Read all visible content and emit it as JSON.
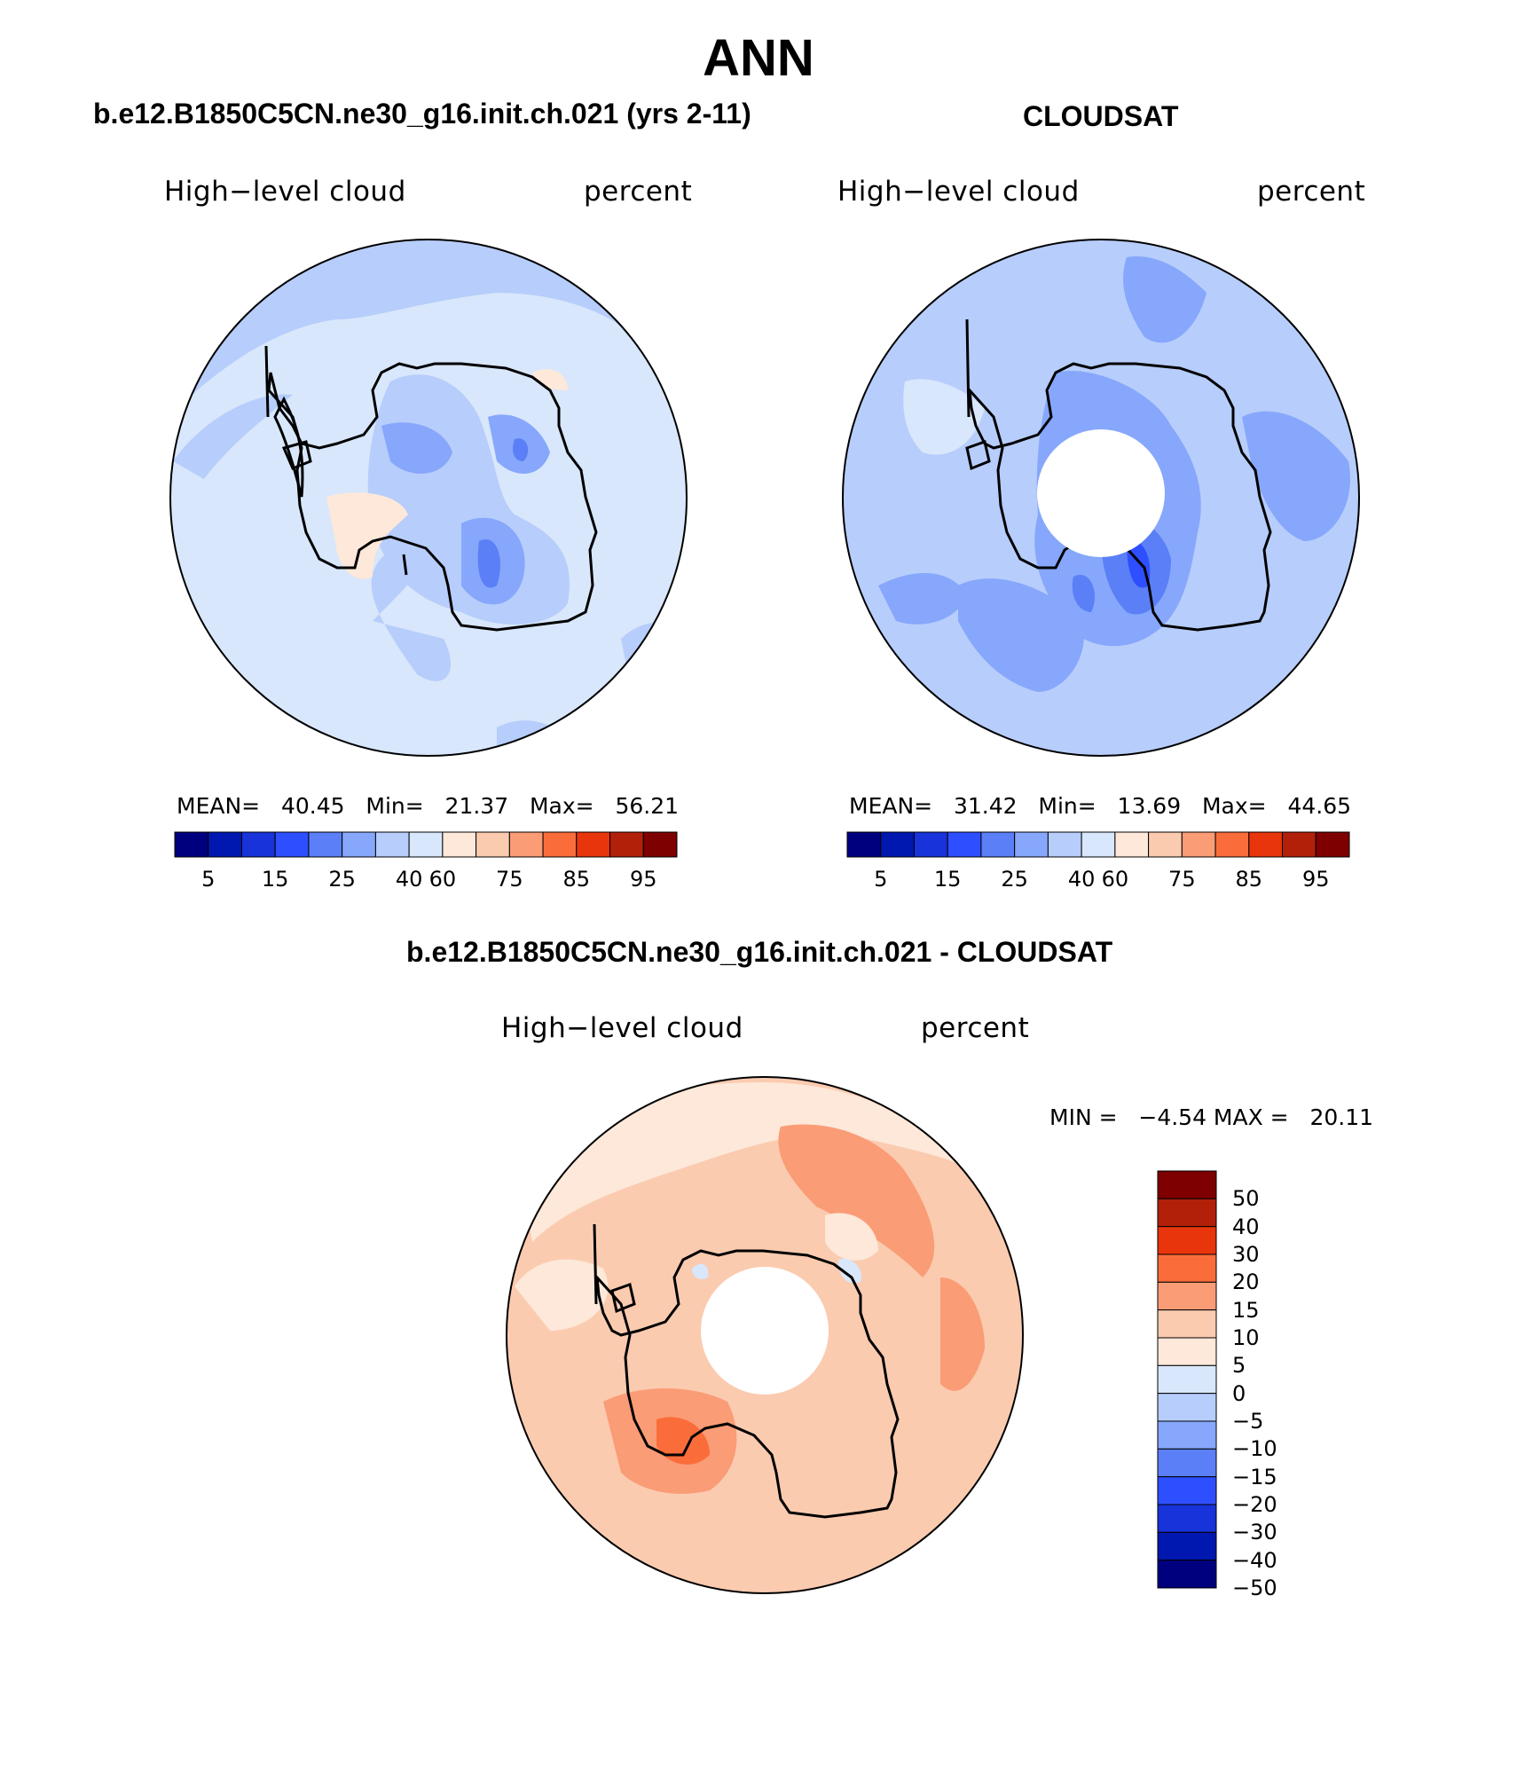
{
  "main_title": "ANN",
  "colors": {
    "abs_scale": [
      "#00007f",
      "#0018b0",
      "#1733d9",
      "#2e4fff",
      "#5b7ff6",
      "#86a7fb",
      "#b7cdfb",
      "#d8e7fb",
      "#fde8d9",
      "#fbcbb0",
      "#fa9c76",
      "#fa6d3b",
      "#e8350c",
      "#b3200a",
      "#7e0000"
    ],
    "diff_scale": [
      "#7e0000",
      "#b3200a",
      "#e8350c",
      "#fa6d3b",
      "#fa9c76",
      "#fbcbb0",
      "#fde8d9",
      "#d8e7fb",
      "#b7cdfb",
      "#86a7fb",
      "#5b7ff6",
      "#2e4fff",
      "#1733d9",
      "#0018b0",
      "#00007f"
    ]
  },
  "panels": {
    "model": {
      "title": "b.e12.B1850C5CN.ne30_g16.init.ch.021 (yrs 2-11)",
      "left_label": "High−level cloud",
      "right_label": "percent",
      "stats": {
        "mean_label": "MEAN=",
        "mean": "40.45",
        "min_label": "Min=",
        "min": "21.37",
        "max_label": "Max=",
        "max": "56.21"
      },
      "colorbar_ticks": [
        "5",
        "15",
        "25",
        "40",
        "60",
        "75",
        "85",
        "95"
      ]
    },
    "obs": {
      "title": "CLOUDSAT",
      "left_label": "High−level cloud",
      "right_label": "percent",
      "stats": {
        "mean_label": "MEAN=",
        "mean": "31.42",
        "min_label": "Min=",
        "min": "13.69",
        "max_label": "Max=",
        "max": "44.65"
      },
      "colorbar_ticks": [
        "5",
        "15",
        "25",
        "40",
        "60",
        "75",
        "85",
        "95"
      ]
    },
    "diff": {
      "title": "b.e12.B1850C5CN.ne30_g16.init.ch.021 - CLOUDSAT",
      "left_label": "High−level cloud",
      "right_label": "percent",
      "minmax_text": "MIN =   −4.54 MAX =   20.11",
      "colorbar_ticks": [
        "50",
        "40",
        "30",
        "20",
        "15",
        "10",
        "5",
        "0",
        "−5",
        "−10",
        "−15",
        "−20",
        "−30",
        "−40",
        "−50"
      ]
    }
  }
}
